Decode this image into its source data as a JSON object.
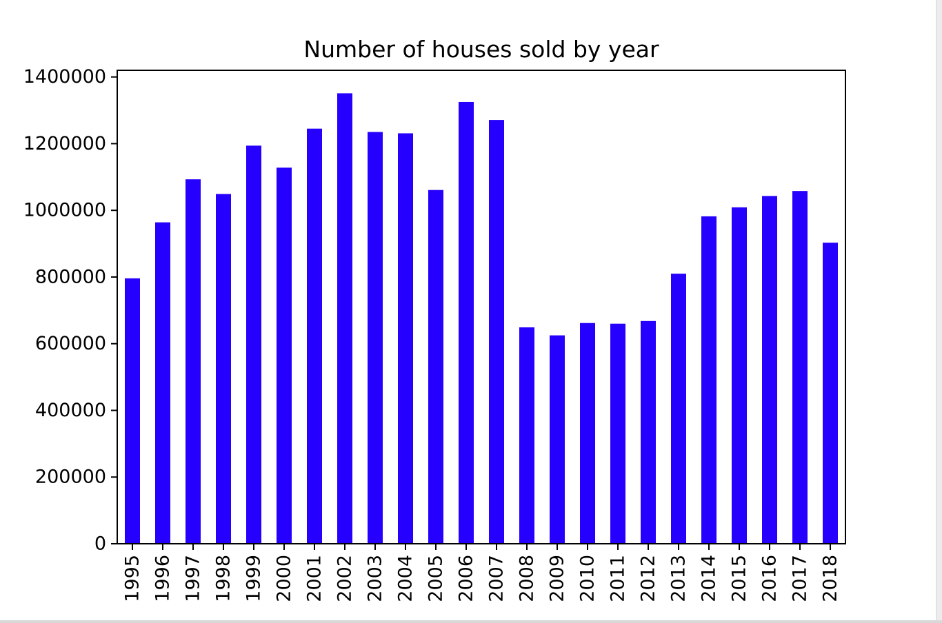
{
  "chart_data": {
    "type": "bar",
    "title": "Number of houses sold by year",
    "xlabel": "",
    "ylabel": "",
    "categories": [
      "1995",
      "1996",
      "1997",
      "1998",
      "1999",
      "2000",
      "2001",
      "2002",
      "2003",
      "2004",
      "2005",
      "2006",
      "2007",
      "2008",
      "2009",
      "2010",
      "2011",
      "2012",
      "2013",
      "2014",
      "2015",
      "2016",
      "2017",
      "2018"
    ],
    "values": [
      796000,
      964000,
      1093000,
      1049000,
      1194000,
      1128000,
      1245000,
      1351000,
      1235000,
      1231000,
      1061000,
      1325000,
      1271000,
      649000,
      625000,
      662000,
      660000,
      668000,
      810000,
      982000,
      1009000,
      1043000,
      1058000,
      903000
    ],
    "yticks": [
      "0",
      "200000",
      "400000",
      "600000",
      "800000",
      "1000000",
      "1200000",
      "1400000"
    ],
    "ylim": [
      0,
      1420000
    ],
    "bar_color": "#2600ff",
    "grid": false,
    "legend": "none"
  }
}
